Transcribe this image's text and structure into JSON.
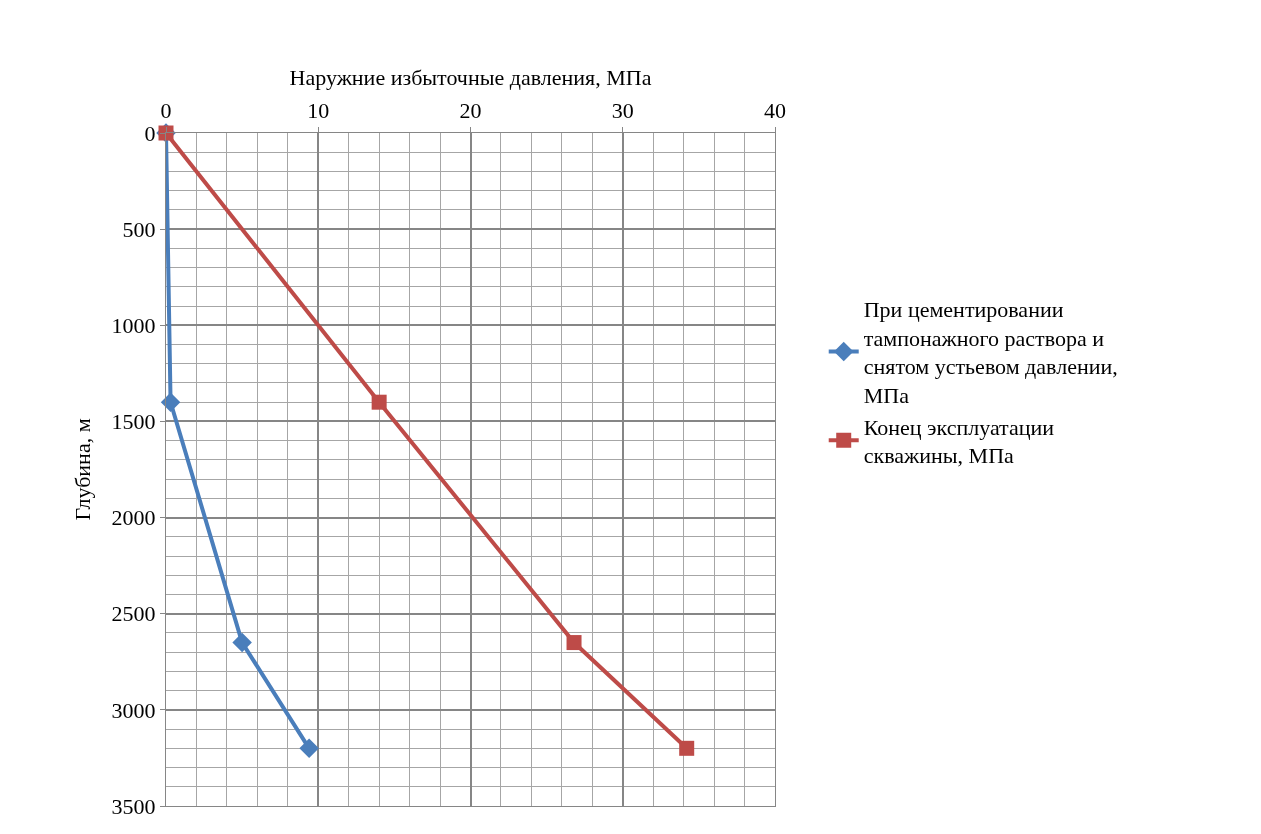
{
  "chart_data": {
    "type": "line",
    "xlabel": "Наружние избыточные давления, МПа",
    "ylabel": "Глубина, м",
    "series": [
      {
        "name": "При цементировании тампонажного раствора и снятом устьевом давлении, МПа",
        "color": "#4a7ebb",
        "marker": "diamond",
        "x": [
          0,
          0.3,
          5,
          9.4
        ],
        "values": [
          0,
          1400,
          2650,
          3200
        ]
      },
      {
        "name": "Конец эксплуатации скважины, МПа",
        "color": "#be4b48",
        "marker": "square",
        "x": [
          0,
          14,
          26.8,
          34.2
        ],
        "values": [
          0,
          1400,
          2650,
          3200
        ]
      }
    ],
    "xlim": [
      0,
      40
    ],
    "xticks": [
      0,
      10,
      20,
      30,
      40
    ],
    "ylim": [
      3500,
      0
    ],
    "yticks": [
      0,
      500,
      1000,
      1500,
      2000,
      2500,
      3000,
      3500
    ],
    "grid": true,
    "legend": "right",
    "line_style": "solid"
  }
}
